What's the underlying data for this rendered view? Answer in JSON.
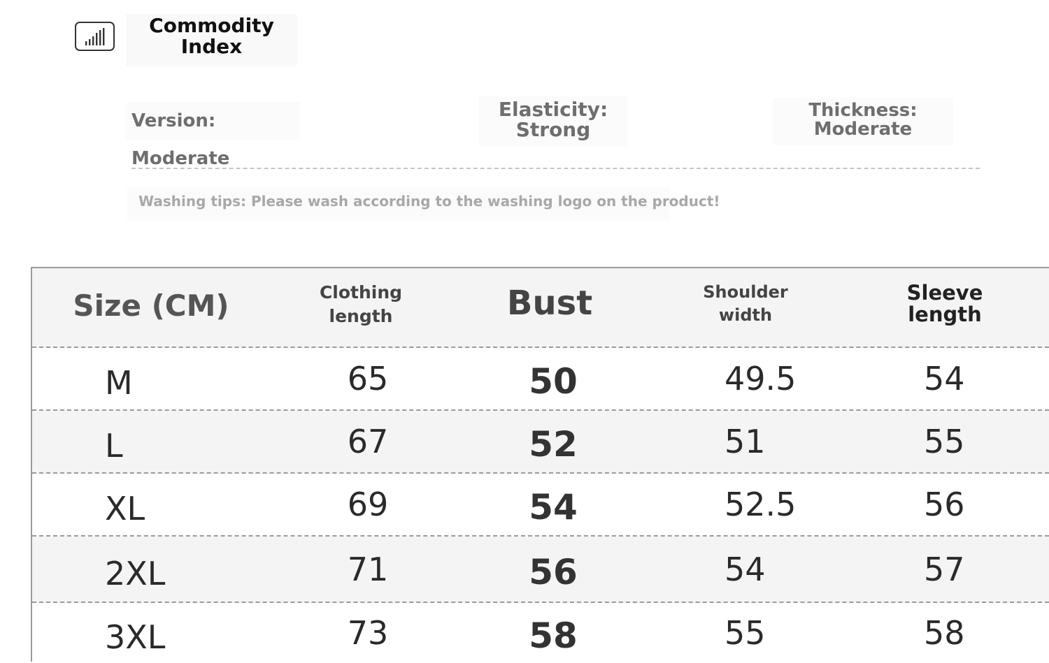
{
  "header": {
    "icon": "signal-bars-icon",
    "title_line1": "Commodity",
    "title_line2": "Index"
  },
  "attributes": {
    "version": "Version: Moderate",
    "elasticity_label": "Elasticity:",
    "elasticity_value": "Strong",
    "thickness_label": "Thickness:",
    "thickness_value": "Moderate"
  },
  "washing_tips": "Washing tips: Please wash according to the washing logo on the product!",
  "size_table": {
    "headers": {
      "size": "Size (CM)",
      "length_line1": "Clothing",
      "length_line2": "length",
      "bust": "Bust",
      "shoulder_line1": "Shoulder",
      "shoulder_line2": "width",
      "sleeve_line1": "Sleeve",
      "sleeve_line2": "length"
    },
    "rows": [
      {
        "size": "M",
        "length": "65",
        "bust": "50",
        "shoulder": "49.5",
        "sleeve": "54"
      },
      {
        "size": "L",
        "length": "67",
        "bust": "52",
        "shoulder": "51",
        "sleeve": "55"
      },
      {
        "size": "XL",
        "length": "69",
        "bust": "54",
        "shoulder": "52.5",
        "sleeve": "56"
      },
      {
        "size": "2XL",
        "length": "71",
        "bust": "56",
        "shoulder": "54",
        "sleeve": "57"
      },
      {
        "size": "3XL",
        "length": "73",
        "bust": "58",
        "shoulder": "55",
        "sleeve": "58"
      }
    ]
  }
}
